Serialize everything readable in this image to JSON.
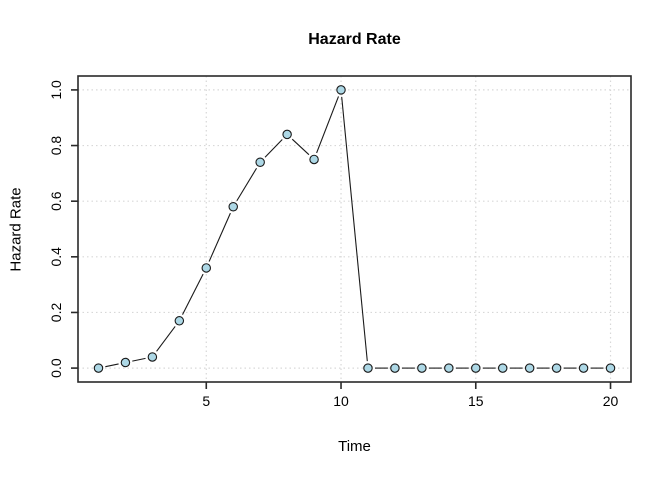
{
  "page": {
    "background_color": "#ffffff"
  },
  "chart_data": {
    "type": "line",
    "title": "Hazard Rate",
    "xlabel": "Time",
    "ylabel": "Hazard Rate",
    "x": [
      1,
      2,
      3,
      4,
      5,
      6,
      7,
      8,
      9,
      10,
      11,
      12,
      13,
      14,
      15,
      16,
      17,
      18,
      19,
      20
    ],
    "values": [
      0.0,
      0.02,
      0.04,
      0.17,
      0.36,
      0.58,
      0.74,
      0.84,
      0.75,
      1.0,
      0.0,
      0.0,
      0.0,
      0.0,
      0.0,
      0.0,
      0.0,
      0.0,
      0.0,
      0.0
    ],
    "xticks": [
      5,
      10,
      15,
      20
    ],
    "xtick_labels": [
      "5",
      "10",
      "15",
      "20"
    ],
    "yticks": [
      0.0,
      0.2,
      0.4,
      0.6,
      0.8,
      1.0
    ],
    "ytick_labels": [
      "0.0",
      "0.2",
      "0.4",
      "0.6",
      "0.8",
      "1.0"
    ],
    "xlim": [
      0.24,
      20.76
    ],
    "ylim": [
      -0.05,
      1.05
    ],
    "grid": true,
    "grid_style": "dotted",
    "legend_position": "none",
    "marker_shape": "open-circle-filled",
    "colors": {
      "point_fill": "#ADD8E6",
      "point_stroke": "#1a1a1a",
      "line": "#1a1a1a",
      "grid": "#d8d8d8",
      "box": "#2a2a2a",
      "text": "#000000"
    }
  }
}
